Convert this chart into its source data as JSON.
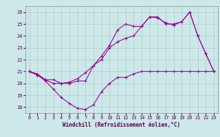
{
  "hours": [
    0,
    1,
    2,
    3,
    4,
    5,
    6,
    7,
    8,
    9,
    10,
    11,
    12,
    13,
    14,
    15,
    16,
    17,
    18,
    19,
    20,
    21,
    22,
    23
  ],
  "temperature": [
    21.0,
    20.8,
    20.3,
    20.3,
    20.0,
    20.0,
    20.2,
    20.2,
    21.5,
    22.0,
    23.0,
    23.5,
    23.8,
    24.0,
    24.8,
    25.6,
    25.5,
    25.1,
    24.9,
    25.2,
    26.0,
    24.0,
    22.5,
    21.0
  ],
  "windchill": [
    21.0,
    20.7,
    20.2,
    19.5,
    18.8,
    18.3,
    17.9,
    17.8,
    18.2,
    19.3,
    20.0,
    20.5,
    20.5,
    20.8,
    21.0,
    21.0,
    21.0,
    21.0,
    21.0,
    21.0,
    21.0,
    21.0,
    21.0,
    21.0
  ],
  "apparent": [
    21.0,
    20.7,
    20.3,
    20.0,
    20.0,
    20.1,
    20.4,
    20.9,
    21.5,
    22.3,
    23.2,
    24.5,
    25.0,
    24.8,
    24.8,
    25.6,
    25.6,
    25.0,
    25.0,
    25.2,
    26.0,
    24.0,
    22.5,
    21.0
  ],
  "line_color": "#990099",
  "bg_color": "#cce8e8",
  "grid_color": "#aacccc",
  "xlabel": "Windchill (Refroidissement éolien,°C)",
  "ylim": [
    17.5,
    26.5
  ],
  "xlim": [
    -0.5,
    23.5
  ],
  "yticks": [
    18,
    19,
    20,
    21,
    22,
    23,
    24,
    25,
    26
  ],
  "xticks": [
    0,
    1,
    2,
    3,
    4,
    5,
    6,
    7,
    8,
    9,
    10,
    11,
    12,
    13,
    14,
    15,
    16,
    17,
    18,
    19,
    20,
    21,
    22,
    23
  ]
}
